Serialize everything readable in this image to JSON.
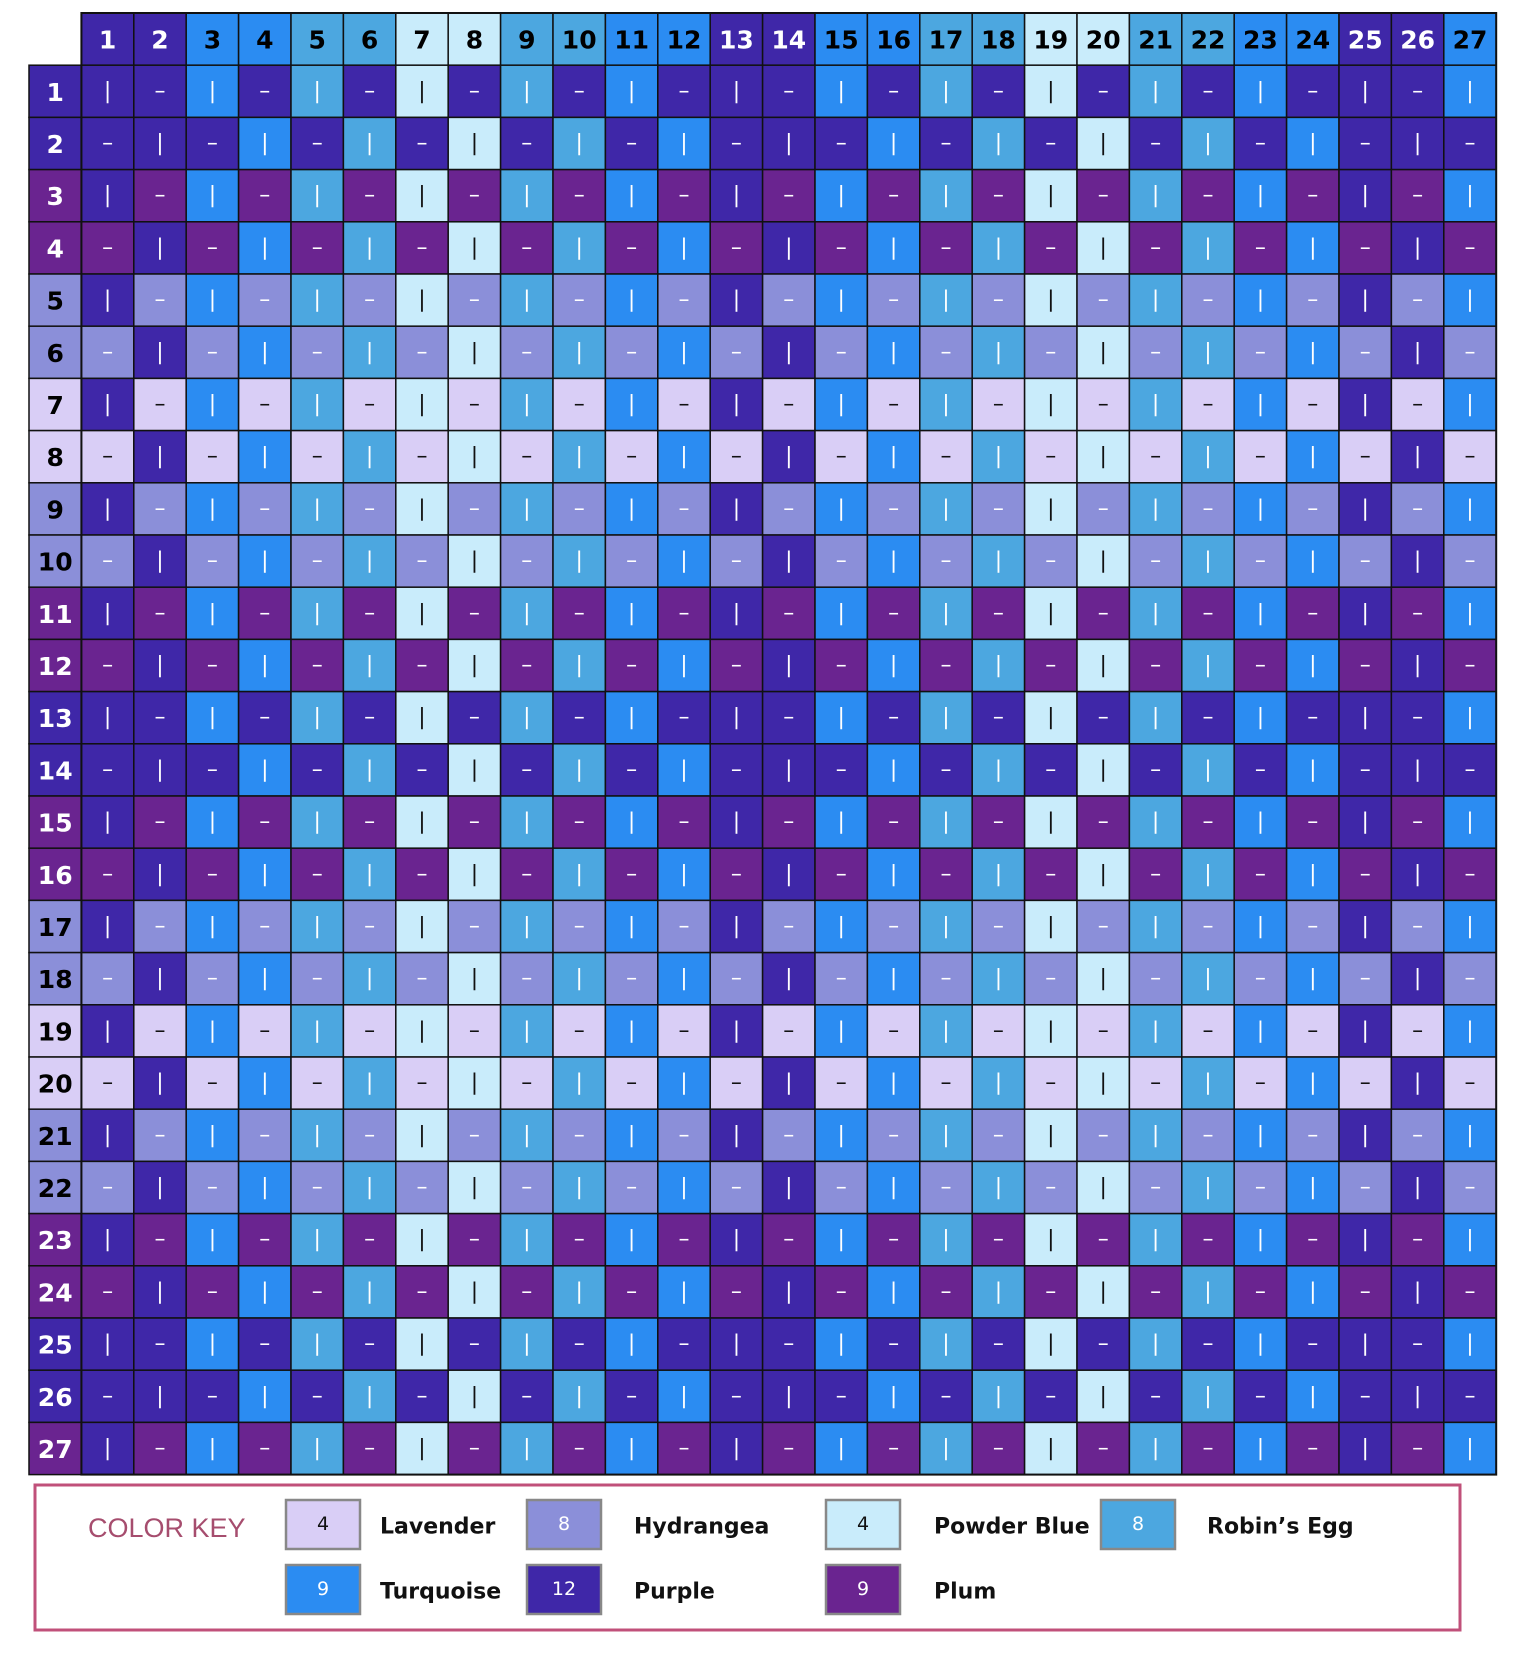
{
  "grid": {
    "column_headers": [
      1,
      2,
      3,
      4,
      5,
      6,
      7,
      8,
      9,
      10,
      11,
      12,
      13,
      14,
      15,
      16,
      17,
      18,
      19,
      20,
      21,
      22,
      23,
      24,
      25,
      26,
      27
    ],
    "row_headers": [
      1,
      2,
      3,
      4,
      5,
      6,
      7,
      8,
      9,
      10,
      11,
      12,
      13,
      14,
      15,
      16,
      17,
      18,
      19,
      20,
      21,
      22,
      23,
      24,
      25,
      26,
      27
    ],
    "column_colors": [
      "#3f27a8",
      "#3f27a8",
      "#2b8cf2",
      "#2b8cf2",
      "#4ca7e0",
      "#4ca7e0",
      "#c9ecfb",
      "#c9ecfb",
      "#4ca7e0",
      "#4ca7e0",
      "#2b8cf2",
      "#2b8cf2",
      "#3f27a8",
      "#3f27a8",
      "#2b8cf2",
      "#2b8cf2",
      "#4ca7e0",
      "#4ca7e0",
      "#c9ecfb",
      "#c9ecfb",
      "#4ca7e0",
      "#4ca7e0",
      "#2b8cf2",
      "#2b8cf2",
      "#3f27a8",
      "#3f27a8",
      "#2b8cf2"
    ],
    "row_colors": [
      "#3f27a8",
      "#3f27a8",
      "#6a2490",
      "#6a2490",
      "#8b8fd9",
      "#8b8fd9",
      "#d9cef6",
      "#d9cef6",
      "#8b8fd9",
      "#8b8fd9",
      "#6a2490",
      "#6a2490",
      "#3f27a8",
      "#3f27a8",
      "#6a2490",
      "#6a2490",
      "#8b8fd9",
      "#8b8fd9",
      "#d9cef6",
      "#d9cef6",
      "#8b8fd9",
      "#8b8fd9",
      "#6a2490",
      "#6a2490",
      "#3f27a8",
      "#3f27a8",
      "#6a2490"
    ],
    "rows": [
      "|–|–|–|–|–|–|–|–|–|–|–|–|–|",
      "–|–|–|–|–|–|–|–|–|–|–|–|–|–",
      "|–|–|–|–|–|–|–|–|–|–|–|–|–|",
      "–|–|–|–|–|–|–|–|–|–|–|–|–|–",
      "|–|–|–|–|–|–|–|–|–|–|–|–|–|",
      "–|–|–|–|–|–|–|–|–|–|–|–|–|–",
      "|–|–|–|–|–|–|–|–|–|–|–|–|–|",
      "–|–|–|–|–|–|–|–|–|–|–|–|–|–",
      "|–|–|–|–|–|–|–|–|–|–|–|–|–|",
      "–|–|–|–|–|–|–|–|–|–|–|–|–|–",
      "|–|–|–|–|–|–|–|–|–|–|–|–|–|",
      "–|–|–|–|–|–|–|–|–|–|–|–|–|–",
      "|–|–|–|–|–|–|–|–|–|–|–|–|–|",
      "–|–|–|–|–|–|–|–|–|–|–|–|–|–",
      "|–|–|–|–|–|–|–|–|–|–|–|–|–|",
      "–|–|–|–|–|–|–|–|–|–|–|–|–|–",
      "|–|–|–|–|–|–|–|–|–|–|–|–|–|",
      "–|–|–|–|–|–|–|–|–|–|–|–|–|–",
      "|–|–|–|–|–|–|–|–|–|–|–|–|–|",
      "–|–|–|–|–|–|–|–|–|–|–|–|–|–",
      "|–|–|–|–|–|–|–|–|–|–|–|–|–|",
      "–|–|–|–|–|–|–|–|–|–|–|–|–|–",
      "|–|–|–|–|–|–|–|–|–|–|–|–|–|",
      "–|–|–|–|–|–|–|–|–|–|–|–|–|–",
      "|–|–|–|–|–|–|–|–|–|–|–|–|–|",
      "–|–|–|–|–|–|–|–|–|–|–|–|–|–",
      "|–|–|–|–|–|–|–|–|–|–|–|–|–|"
    ]
  },
  "color_key": {
    "title": "COLOR KEY",
    "items": [
      {
        "count": 4,
        "name": "Lavender",
        "color": "#d9cef6"
      },
      {
        "count": 8,
        "name": "Hydrangea",
        "color": "#8b8fd9"
      },
      {
        "count": 4,
        "name": "Powder Blue",
        "color": "#c9ecfb"
      },
      {
        "count": 8,
        "name": "Robin’s Egg",
        "color": "#4ca7e0"
      },
      {
        "count": 9,
        "name": "Turquoise",
        "color": "#2b8cf2"
      },
      {
        "count": 12,
        "name": "Purple",
        "color": "#3f27a8"
      },
      {
        "count": 9,
        "name": "Plum",
        "color": "#6a2490"
      }
    ]
  }
}
